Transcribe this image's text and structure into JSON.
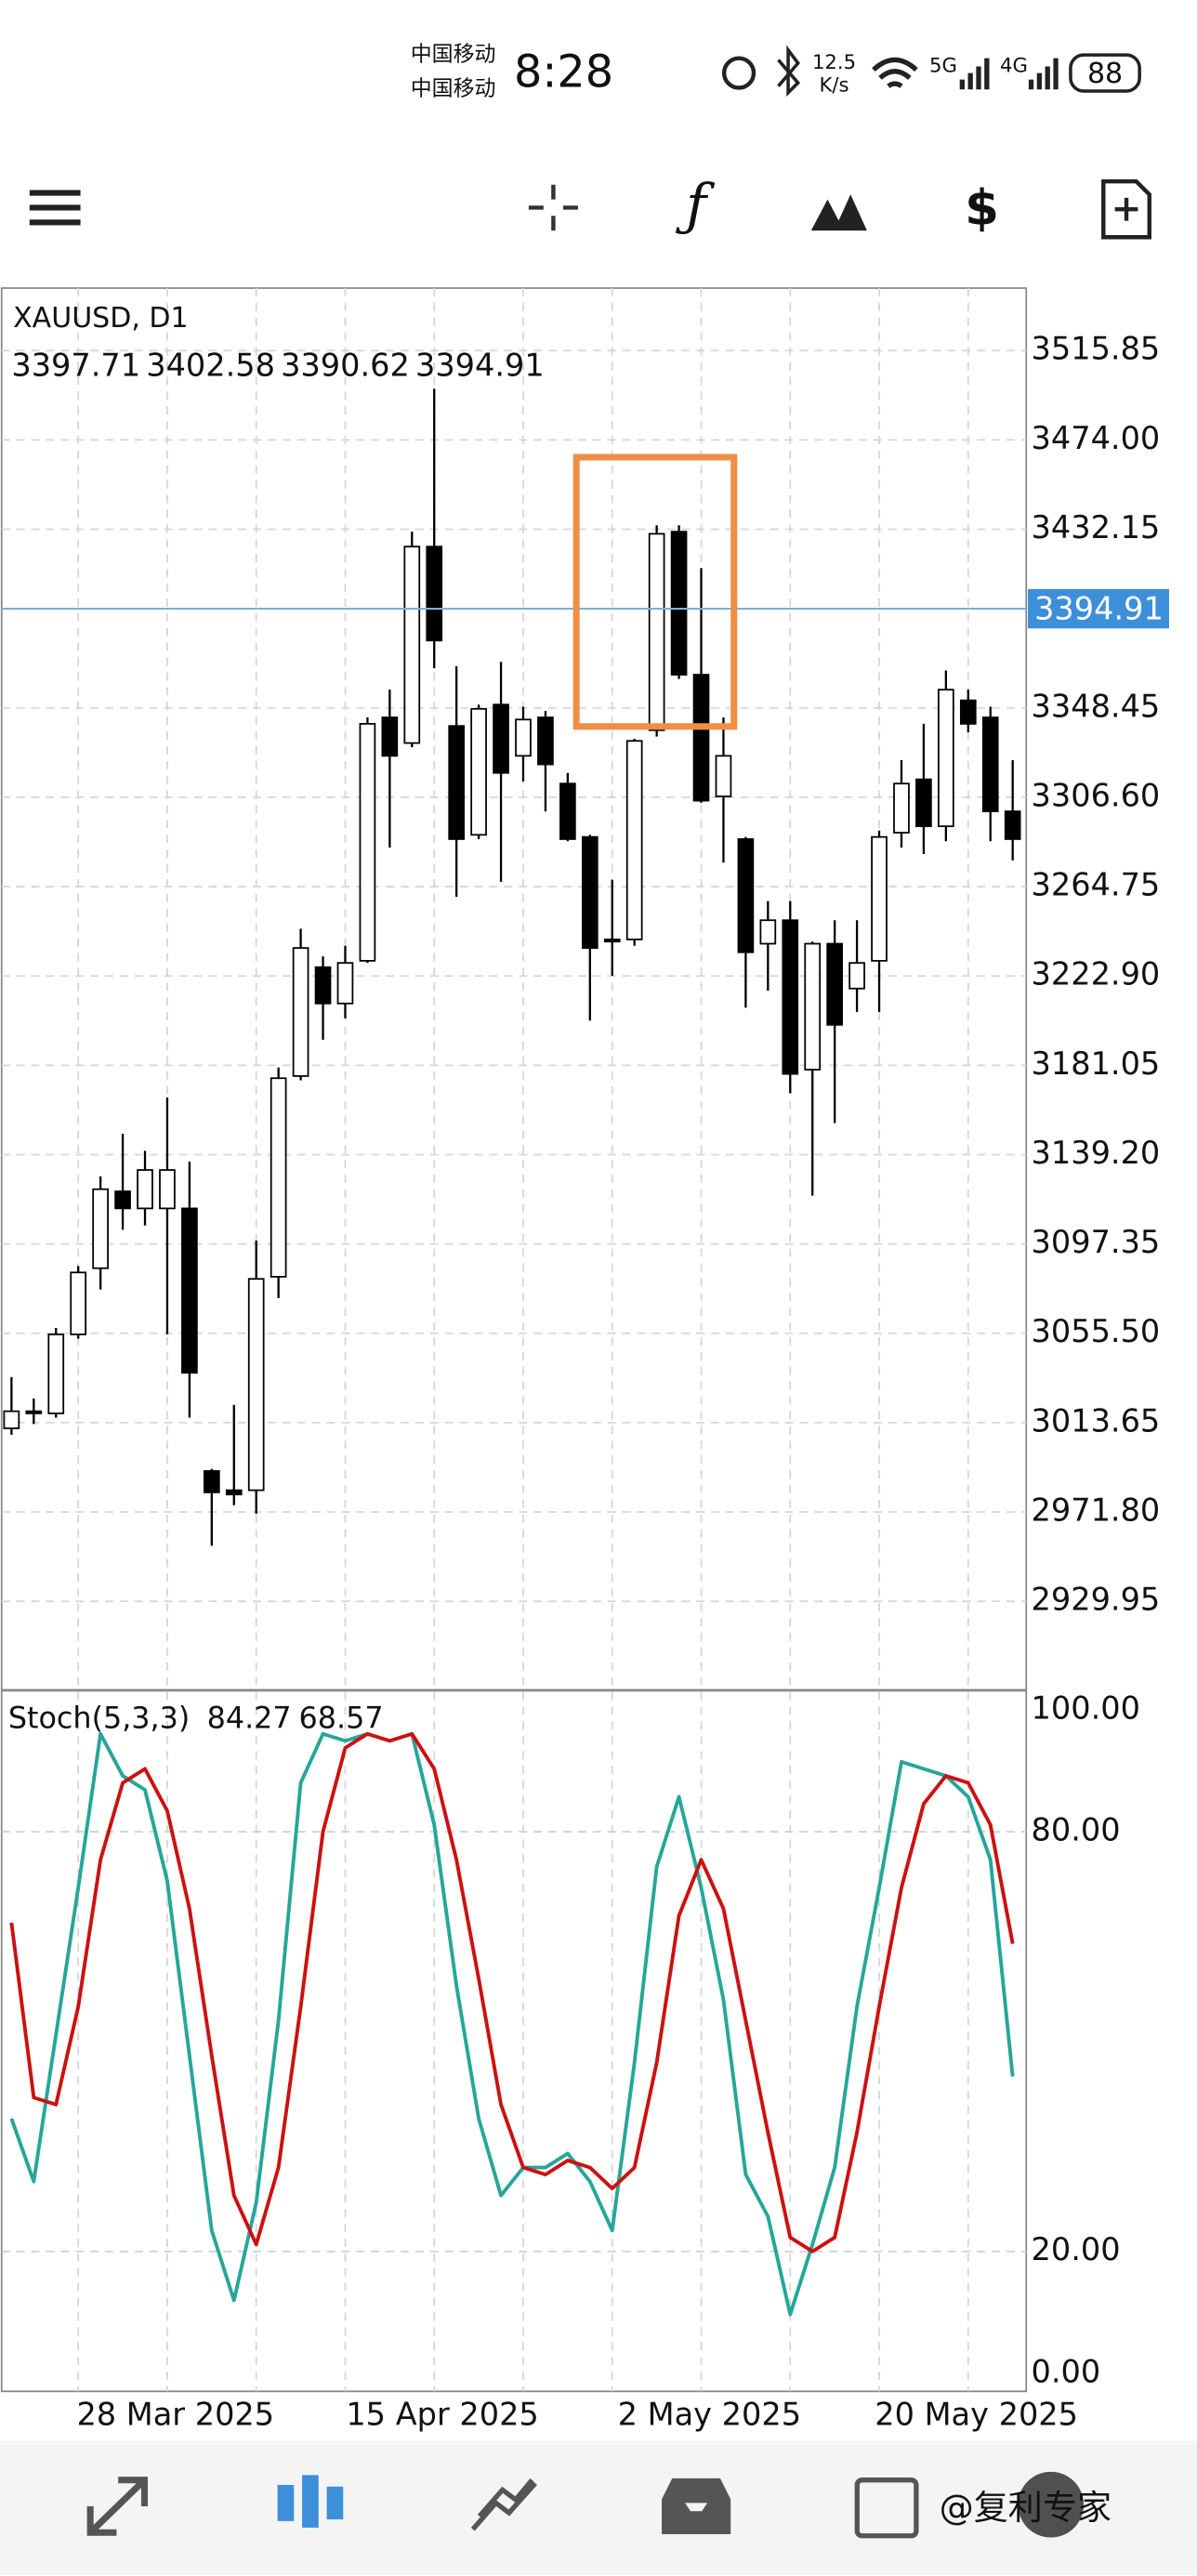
{
  "status_bar": {
    "carrier_1": "中国移动",
    "carrier_2": "中国移动",
    "time": "8:28",
    "speed": "12.5",
    "speed_unit": "K/s",
    "network_1": "5G",
    "network_2": "4G",
    "battery": "88"
  },
  "watermark": "@复利专家",
  "chart_data": [
    {
      "type": "candlestick",
      "title": "XAUUSD, D1",
      "ohlc_readout": [
        3397.71,
        3402.58,
        3390.62,
        3394.91
      ],
      "categories": [
        null,
        null,
        null,
        null,
        null,
        null,
        null,
        "28 Mar 2025",
        null,
        null,
        null,
        null,
        null,
        null,
        null,
        null,
        null,
        null,
        null,
        "15 Apr 2025",
        null,
        null,
        null,
        null,
        null,
        null,
        null,
        null,
        null,
        null,
        null,
        "2 May 2025",
        null,
        null,
        null,
        null,
        null,
        null,
        null,
        null,
        null,
        null,
        null,
        "20 May 2025",
        null,
        null
      ],
      "open": [
        3011,
        3019,
        3018,
        3055,
        3086,
        3122,
        3114,
        3114,
        3114,
        2991,
        2982,
        2982,
        3082,
        3176,
        3227,
        3210,
        3230,
        3344,
        3332,
        3424,
        3340,
        3289,
        3350,
        3326,
        3344,
        3313,
        3288,
        3240,
        3240,
        3338,
        3431,
        3364,
        3307,
        3287,
        3238,
        3249,
        3179,
        3238,
        3217,
        3230,
        3290,
        3315,
        3293,
        3352,
        3344,
        3300
      ],
      "high": [
        3035,
        3025,
        3058,
        3087,
        3129,
        3149,
        3141,
        3166,
        3136,
        2992,
        3022,
        3099,
        3180,
        3245,
        3232,
        3237,
        3344,
        3357,
        3431,
        3498,
        3368,
        3350,
        3370,
        3349,
        3347,
        3318,
        3289,
        3268,
        3334,
        3434,
        3434,
        3414,
        3344,
        3288,
        3258,
        3258,
        3239,
        3249,
        3249,
        3291,
        3324,
        3341,
        3366,
        3357,
        3349,
        3324
      ],
      "low": [
        3008,
        3013,
        3016,
        3053,
        3076,
        3104,
        3106,
        3055,
        3016,
        2956,
        2975,
        2971,
        3072,
        3174,
        3193,
        3203,
        3229,
        3283,
        3330,
        3367,
        3260,
        3287,
        3267,
        3314,
        3300,
        3286,
        3202,
        3223,
        3237,
        3335,
        3362,
        3304,
        3276,
        3208,
        3216,
        3168,
        3120,
        3154,
        3206,
        3206,
        3283,
        3280,
        3286,
        3337,
        3286,
        3277
      ],
      "close": [
        3019,
        3018,
        3055,
        3084,
        3123,
        3114,
        3132,
        3132,
        3037,
        2981,
        2980,
        3081,
        3175,
        3236,
        3210,
        3229,
        3341,
        3326,
        3424,
        3380,
        3287,
        3348,
        3318,
        3343,
        3322,
        3287,
        3236,
        3239,
        3333,
        3430,
        3364,
        3305,
        3326,
        3234,
        3249,
        3177,
        3238,
        3200,
        3229,
        3288,
        3313,
        3293,
        3357,
        3341,
        3300,
        3287
      ],
      "up_color": "#ffffff",
      "down_color": "#000000",
      "ylim": [
        2888.3,
        3545.1
      ],
      "yticks": [
        3515.85,
        {
          "value": 3474,
          "label": "3474.00"
        },
        3432.15,
        3348.45,
        {
          "value": 3306.6,
          "label": "3306.60"
        },
        3264.75,
        {
          "value": 3222.9,
          "label": "3222.90"
        },
        3181.05,
        {
          "value": 3139.2,
          "label": "3139.20"
        },
        3097.35,
        {
          "value": 3055.5,
          "label": "3055.50"
        },
        3013.65,
        {
          "value": 2971.8,
          "label": "2971.80"
        },
        2929.95
      ],
      "current_price": 3394.91,
      "current_price_color": "#3d8fd9",
      "grid": true
    },
    {
      "type": "line",
      "title": "Stoch(5,3,3)",
      "readout": [
        84.27,
        68.57
      ],
      "series": [
        {
          "color": "#26a69a",
          "values": [
            39,
            30,
            51,
            72,
            94,
            88,
            86,
            73,
            48,
            23,
            13,
            27,
            53,
            87,
            94,
            93,
            94,
            93,
            94,
            81,
            58,
            39,
            28,
            32,
            32,
            34,
            30,
            23,
            47,
            75,
            85,
            72,
            56,
            31,
            25,
            11,
            21,
            32,
            55,
            72,
            90,
            89,
            88,
            85,
            76,
            45
          ]
        },
        {
          "color": "#cc1111",
          "values": [
            67,
            42,
            41,
            55,
            76,
            87,
            89,
            83,
            69,
            48,
            28,
            21,
            32,
            55,
            80,
            92,
            94,
            93,
            94,
            89,
            76,
            59,
            41,
            32,
            31,
            33,
            32,
            29,
            32,
            47,
            68,
            76,
            69,
            53,
            37,
            22,
            20,
            22,
            37,
            55,
            72,
            84,
            88,
            87,
            81,
            64
          ]
        }
      ],
      "ylim": [
        0,
        100
      ],
      "yticks": [
        {
          "value": 100,
          "label": "100.00"
        },
        {
          "value": 80,
          "label": "80.00"
        },
        {
          "value": 20,
          "label": "20.00"
        },
        {
          "value": 0,
          "label": "0.00"
        }
      ],
      "grid": true
    }
  ]
}
